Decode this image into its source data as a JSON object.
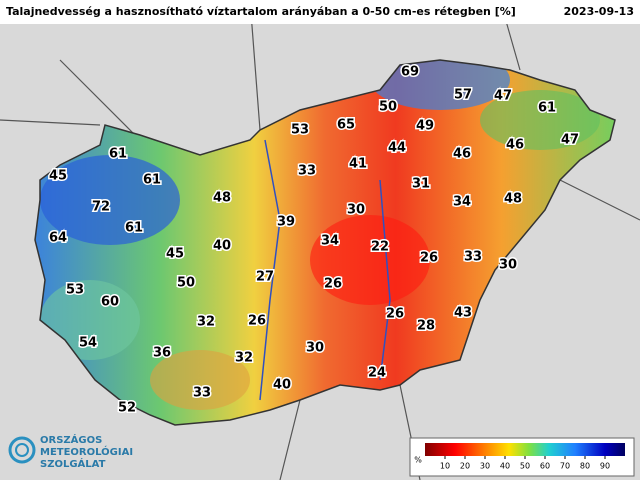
{
  "header": {
    "title": "Talajnedvesség a hasznosítható víztartalom arányában a 0-50 cm-es rétegben [%]",
    "date": "2023-09-13"
  },
  "stations": [
    69,
    57,
    47,
    61,
    50,
    53,
    65,
    49,
    44,
    46,
    46,
    47,
    61,
    45,
    61,
    33,
    41,
    31,
    72,
    48,
    30,
    34,
    48,
    61,
    39,
    64,
    40,
    34,
    22,
    45,
    26,
    33,
    30,
    27,
    50,
    53,
    26,
    60,
    26,
    43,
    32,
    26,
    28,
    54,
    36,
    32,
    30,
    24,
    40,
    33,
    52
  ],
  "legend": {
    "unit": "%",
    "ticks": [
      10,
      20,
      30,
      40,
      50,
      60,
      70,
      80,
      90
    ]
  },
  "logo": {
    "line1": "ORSZÁGOS",
    "line2": "METEOROLÓGIAI",
    "line3": "SZOLGÁLAT"
  }
}
